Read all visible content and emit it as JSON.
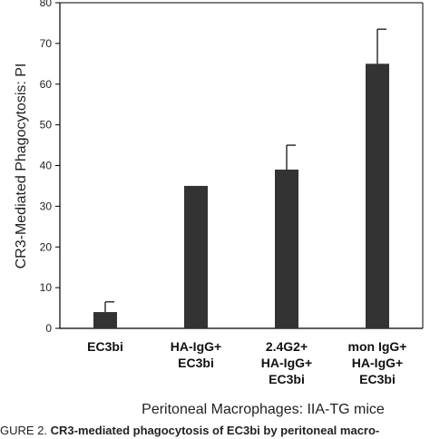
{
  "chart_data": {
    "type": "bar",
    "categories": [
      [
        "EC3bi"
      ],
      [
        "HA-IgG+",
        "EC3bi"
      ],
      [
        "2.4G2+",
        "HA-IgG+",
        "EC3bi"
      ],
      [
        "mon IgG+",
        "HA-IgG+",
        "EC3bi"
      ]
    ],
    "values": [
      4,
      35,
      39,
      65
    ],
    "error_upper": [
      6.5,
      35,
      45,
      73.5
    ],
    "ylabel": "CR3-Mediated Phagocytosis: PI",
    "xlabel": "Peritoneal Macrophages: IIA-TG mice",
    "ylim": [
      0,
      80
    ],
    "yticks": [
      0,
      10,
      20,
      30,
      40,
      50,
      60,
      70,
      80
    ],
    "bar_color": "#333333",
    "grid": false,
    "legend": "none"
  },
  "caption": {
    "prefix": "GURE 2. ",
    "bold": "CR3-mediated phagocytosis of EC3bi by peritoneal macro-"
  }
}
